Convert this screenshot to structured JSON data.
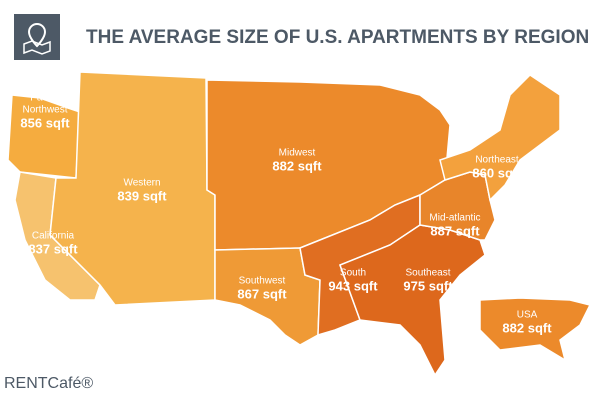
{
  "header": {
    "title": "THE AVERAGE SIZE OF U.S. APARTMENTS BY REGION"
  },
  "regions": [
    {
      "name": [
        "Pacific",
        "Northwest"
      ],
      "size": "856 sqft"
    },
    {
      "name": [
        "Western"
      ],
      "size": "839 sqft"
    },
    {
      "name": [
        "California"
      ],
      "size": "837 sqft"
    },
    {
      "name": [
        "Midwest"
      ],
      "size": "882 sqft"
    },
    {
      "name": [
        "Northeast"
      ],
      "size": "860 sqft"
    },
    {
      "name": [
        "Mid-atlantic"
      ],
      "size": "887 sqft"
    },
    {
      "name": [
        "Southwest"
      ],
      "size": "867 sqft"
    },
    {
      "name": [
        "South"
      ],
      "size": "943 sqft"
    },
    {
      "name": [
        "Southeast"
      ],
      "size": "975 sqft"
    },
    {
      "name": [
        "USA"
      ],
      "size": "882 sqft"
    }
  ],
  "footer": {
    "logo": "RENTCafé®"
  }
}
